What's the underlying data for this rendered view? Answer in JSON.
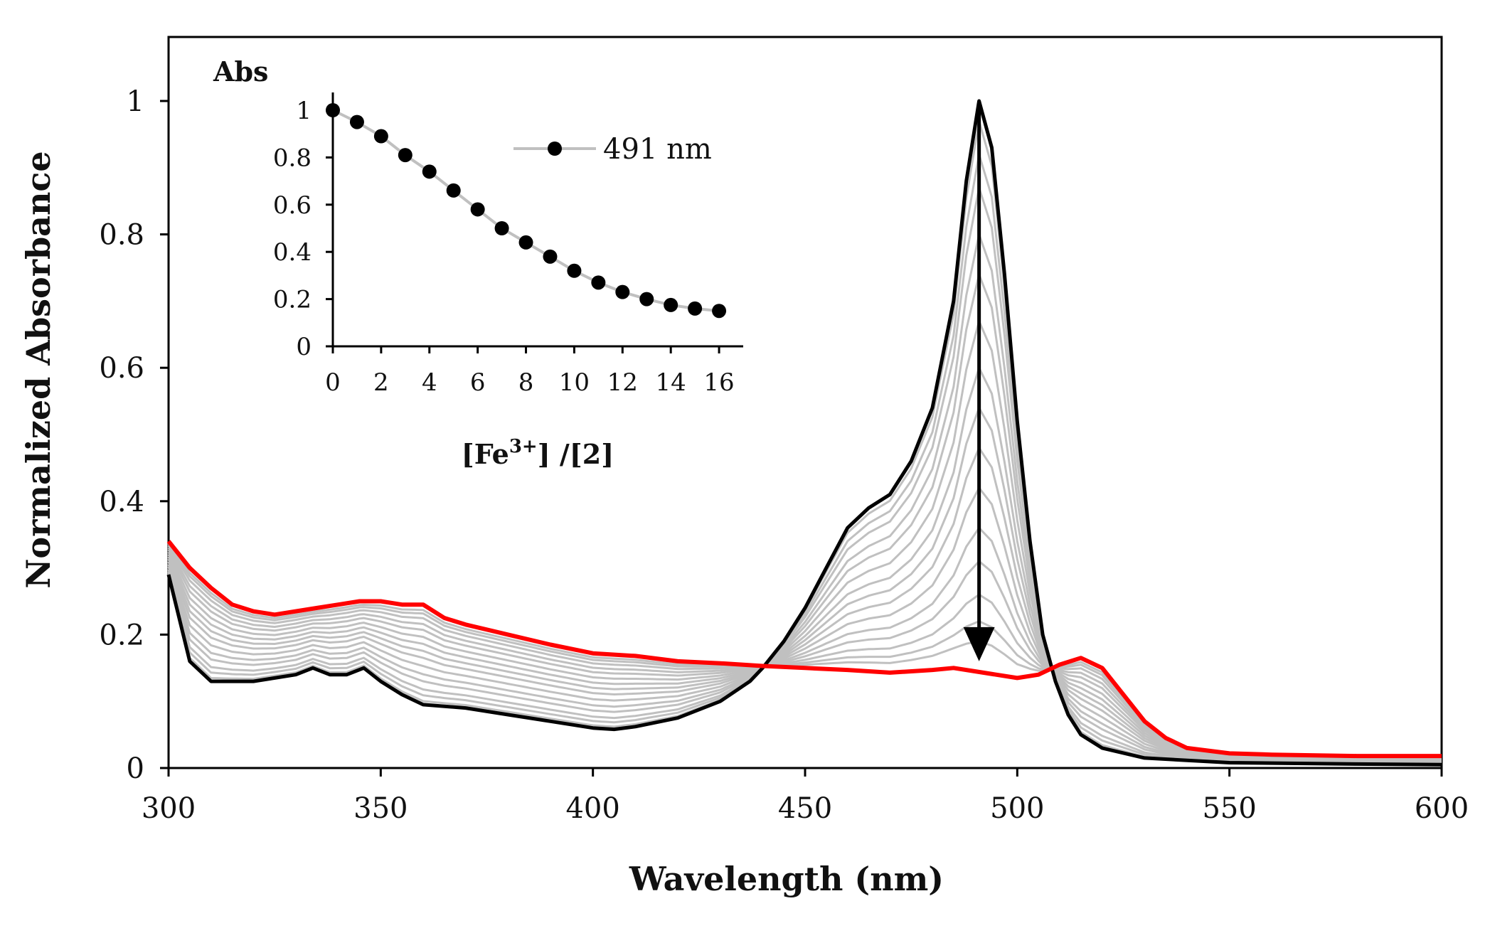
{
  "chart_data": [
    {
      "type": "line",
      "xlabel": "Wavelength (nm)",
      "ylabel": "Normalized Absorbance",
      "xlim": [
        300,
        600
      ],
      "ylim": [
        0,
        1.1
      ],
      "x_ticks": [
        "300",
        "350",
        "400",
        "450",
        "500",
        "550",
        "600"
      ],
      "y_ticks": [
        "0",
        "0.2",
        "0.4",
        "0.6",
        "0.8",
        "1"
      ],
      "grid": false,
      "legend": "none",
      "annotation": "downward arrow at 491 nm from 1.0 to 0.16",
      "series": [
        {
          "role": "initial spectrum",
          "color": "#000000",
          "points": [
            [
              300,
              0.29
            ],
            [
              305,
              0.16
            ],
            [
              310,
              0.13
            ],
            [
              320,
              0.13
            ],
            [
              325,
              0.135
            ],
            [
              330,
              0.14
            ],
            [
              334,
              0.15
            ],
            [
              338,
              0.14
            ],
            [
              342,
              0.14
            ],
            [
              346,
              0.15
            ],
            [
              350,
              0.13
            ],
            [
              355,
              0.11
            ],
            [
              360,
              0.095
            ],
            [
              370,
              0.09
            ],
            [
              380,
              0.08
            ],
            [
              390,
              0.07
            ],
            [
              400,
              0.06
            ],
            [
              405,
              0.058
            ],
            [
              410,
              0.062
            ],
            [
              420,
              0.075
            ],
            [
              430,
              0.1
            ],
            [
              437,
              0.13
            ],
            [
              440,
              0.15
            ],
            [
              445,
              0.19
            ],
            [
              450,
              0.24
            ],
            [
              455,
              0.3
            ],
            [
              460,
              0.36
            ],
            [
              465,
              0.39
            ],
            [
              470,
              0.41
            ],
            [
              475,
              0.46
            ],
            [
              480,
              0.54
            ],
            [
              485,
              0.7
            ],
            [
              488,
              0.88
            ],
            [
              491,
              1.0
            ],
            [
              494,
              0.93
            ],
            [
              497,
              0.74
            ],
            [
              500,
              0.52
            ],
            [
              503,
              0.34
            ],
            [
              506,
              0.2
            ],
            [
              509,
              0.13
            ],
            [
              512,
              0.08
            ],
            [
              515,
              0.05
            ],
            [
              520,
              0.03
            ],
            [
              530,
              0.015
            ],
            [
              550,
              0.008
            ],
            [
              580,
              0.006
            ],
            [
              600,
              0.005
            ]
          ]
        },
        {
          "role": "final spectrum",
          "color": "#ff0000",
          "points": [
            [
              300,
              0.34
            ],
            [
              305,
              0.3
            ],
            [
              310,
              0.27
            ],
            [
              315,
              0.245
            ],
            [
              320,
              0.235
            ],
            [
              325,
              0.23
            ],
            [
              330,
              0.235
            ],
            [
              335,
              0.24
            ],
            [
              340,
              0.245
            ],
            [
              345,
              0.25
            ],
            [
              350,
              0.25
            ],
            [
              355,
              0.245
            ],
            [
              360,
              0.245
            ],
            [
              365,
              0.225
            ],
            [
              370,
              0.215
            ],
            [
              380,
              0.2
            ],
            [
              390,
              0.185
            ],
            [
              400,
              0.172
            ],
            [
              410,
              0.168
            ],
            [
              420,
              0.16
            ],
            [
              430,
              0.157
            ],
            [
              440,
              0.153
            ],
            [
              450,
              0.15
            ],
            [
              460,
              0.147
            ],
            [
              470,
              0.143
            ],
            [
              480,
              0.147
            ],
            [
              485,
              0.15
            ],
            [
              490,
              0.145
            ],
            [
              495,
              0.14
            ],
            [
              500,
              0.135
            ],
            [
              505,
              0.14
            ],
            [
              510,
              0.155
            ],
            [
              515,
              0.165
            ],
            [
              520,
              0.15
            ],
            [
              525,
              0.11
            ],
            [
              530,
              0.07
            ],
            [
              535,
              0.045
            ],
            [
              540,
              0.03
            ],
            [
              550,
              0.022
            ],
            [
              560,
              0.02
            ],
            [
              580,
              0.018
            ],
            [
              600,
              0.018
            ]
          ]
        }
      ],
      "intermediate_spectra": {
        "color": "#c0c0c0",
        "count": 15,
        "peak_values_at_491": [
          0.97,
          0.92,
          0.87,
          0.8,
          0.74,
          0.67,
          0.6,
          0.54,
          0.48,
          0.42,
          0.36,
          0.31,
          0.26,
          0.22,
          0.19
        ],
        "note": "interpolated between initial and final spectra"
      }
    },
    {
      "type": "scatter",
      "title": "Abs",
      "xlabel": "[Fe3+] /[2]",
      "ylabel": "Abs",
      "xlim": [
        0,
        17
      ],
      "ylim": [
        0,
        1.05
      ],
      "x_ticks": [
        "0",
        "2",
        "4",
        "6",
        "8",
        "10",
        "12",
        "14",
        "16"
      ],
      "y_ticks": [
        "0",
        "0.2",
        "0.4",
        "0.6",
        "0.8",
        "1"
      ],
      "legend": "top-right",
      "series": [
        {
          "name": "491 nm",
          "marker_color": "#000000",
          "line_color": "#c0c0c0",
          "x": [
            0,
            1,
            2,
            3,
            4,
            5,
            6,
            7,
            8,
            9,
            10,
            11,
            12,
            13,
            14,
            15,
            16
          ],
          "y": [
            1.0,
            0.95,
            0.89,
            0.81,
            0.74,
            0.66,
            0.58,
            0.5,
            0.44,
            0.38,
            0.32,
            0.27,
            0.23,
            0.2,
            0.175,
            0.16,
            0.15
          ]
        }
      ]
    }
  ]
}
